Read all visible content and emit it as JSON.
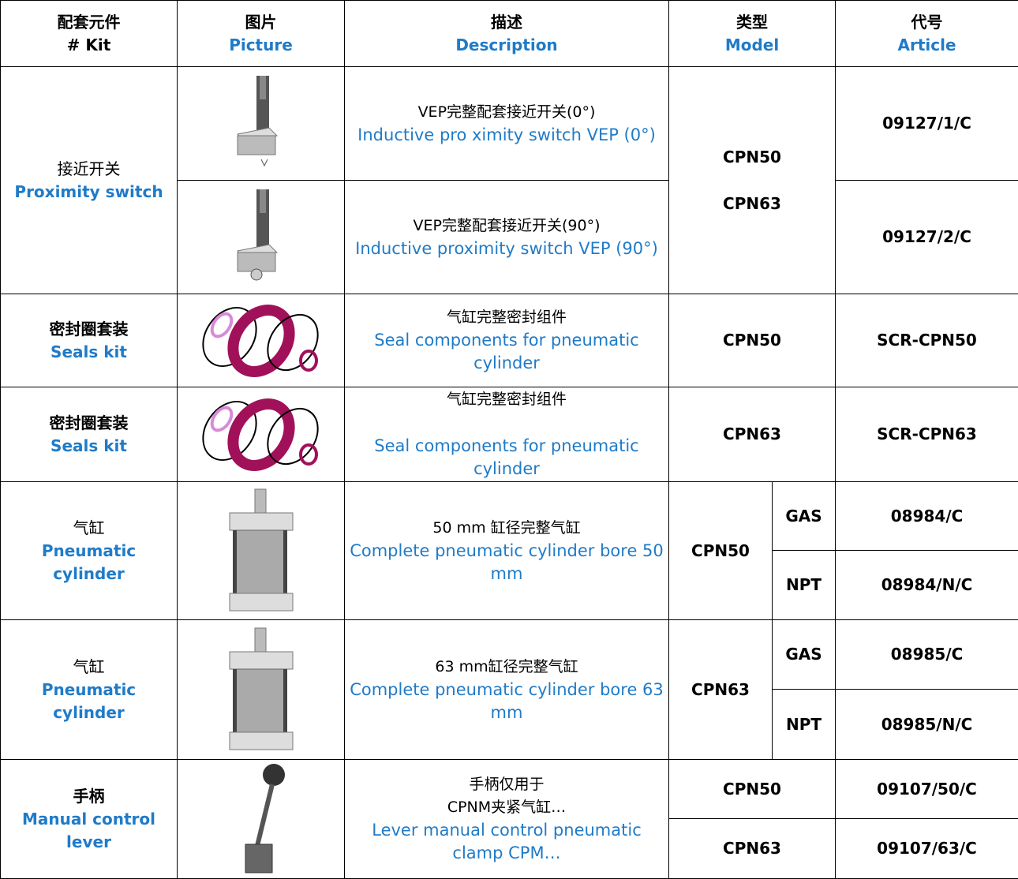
{
  "table": {
    "header": [
      [
        "配套元件",
        "# Kit"
      ],
      [
        "图片",
        "Picture"
      ],
      [
        "描述",
        "Description"
      ],
      [
        "类型",
        "Model"
      ],
      [
        "代号",
        "Article"
      ]
    ],
    "groups": [
      {
        "kit": [
          "接近开关",
          "Proximity switch"
        ],
        "models": [
          "CPN50",
          "CPN63"
        ],
        "items": [
          {
            "desc": [
              "VEP完整配套接近开关(0°)",
              "Inductive pro ximity switch VEP (0°)"
            ],
            "article": "09127/1/C"
          },
          {
            "desc": [
              "VEP完整配套接近开关(90°)",
              "Inductive proximity switch VEP (90°)"
            ],
            "article": "09127/2/C"
          }
        ]
      },
      {
        "kit": [
          "密封圈套装",
          "Seals kit"
        ],
        "desc": [
          "气缸完整密封组件",
          "Seal components for pneumatic cylinder"
        ],
        "model": "CPN50",
        "article": "SCR-CPN50"
      },
      {
        "kit": [
          "密封圈套装",
          "Seals kit"
        ],
        "desc": [
          "气缸完整密封组件",
          "Seal components for pneumatic cylinder"
        ],
        "model": "CPN63",
        "article": "SCR-CPN63"
      },
      {
        "kit": [
          "气缸",
          "Pneumatic cylinder"
        ],
        "desc": [
          "50 mm 缸径完整气缸",
          "Complete pneumatic cylinder bore 50 mm"
        ],
        "model": "CPN50",
        "variants": [
          [
            "GAS",
            "08984/C"
          ],
          [
            "NPT",
            "08984/N/C"
          ]
        ]
      },
      {
        "kit": [
          "气缸",
          "Pneumatic cylinder"
        ],
        "desc": [
          "63 mm缸径完整气缸",
          "Complete pneumatic cylinder bore 63 mm"
        ],
        "model": "CPN63",
        "variants": [
          [
            "GAS",
            "08985/C"
          ],
          [
            "NPT",
            "08985/N/C"
          ]
        ]
      },
      {
        "kit": [
          "手柄",
          "Manual control lever"
        ],
        "desc": [
          "手柄仅用于",
          "CPNM夹紧气缸…",
          "Lever manual control pneumatic clamp CPM…"
        ],
        "rows": [
          [
            "CPN50",
            "09107/50/C"
          ],
          [
            "CPN63",
            "09107/63/C"
          ]
        ]
      }
    ]
  }
}
